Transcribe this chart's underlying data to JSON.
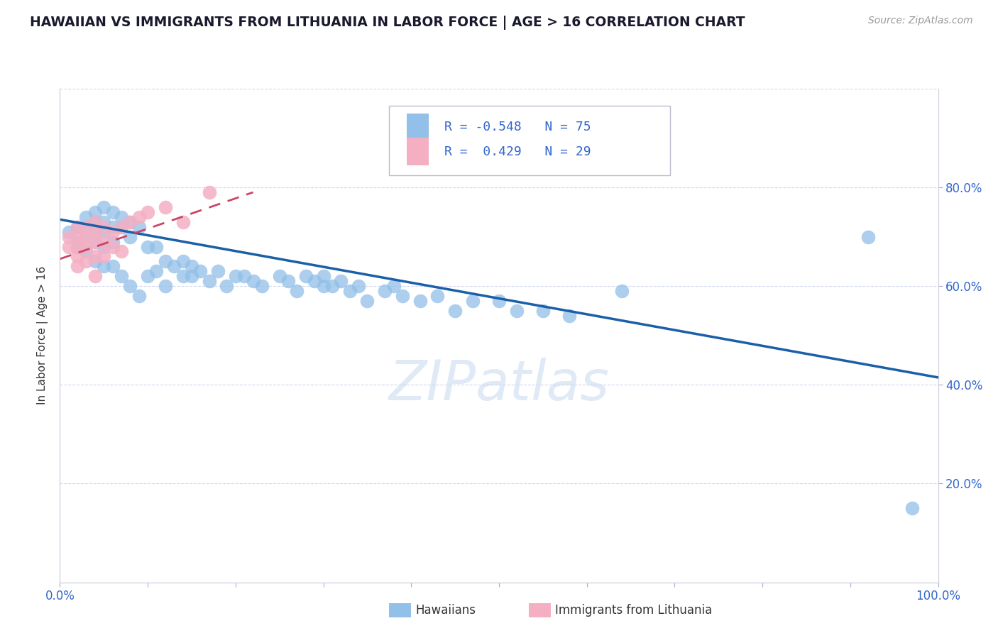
{
  "title": "HAWAIIAN VS IMMIGRANTS FROM LITHUANIA IN LABOR FORCE | AGE > 16 CORRELATION CHART",
  "source": "Source: ZipAtlas.com",
  "ylabel": "In Labor Force | Age > 16",
  "xlim": [
    0.0,
    1.0
  ],
  "ylim": [
    0.0,
    1.0
  ],
  "background_color": "#ffffff",
  "grid_color": "#d0d8ee",
  "watermark_text": "ZIPatlas",
  "legend_line1": "R = -0.548   N = 75",
  "legend_line2": "R =  0.429   N = 29",
  "blue_color": "#92c0e8",
  "pink_color": "#f4afc3",
  "trendline_blue": "#1a5fa8",
  "trendline_pink": "#cc4466",
  "hawaiians_x": [
    0.01,
    0.02,
    0.02,
    0.02,
    0.03,
    0.03,
    0.03,
    0.03,
    0.04,
    0.04,
    0.04,
    0.04,
    0.04,
    0.05,
    0.05,
    0.05,
    0.05,
    0.05,
    0.06,
    0.06,
    0.06,
    0.06,
    0.07,
    0.07,
    0.07,
    0.08,
    0.08,
    0.08,
    0.09,
    0.09,
    0.1,
    0.1,
    0.11,
    0.11,
    0.12,
    0.12,
    0.13,
    0.14,
    0.14,
    0.15,
    0.15,
    0.16,
    0.17,
    0.18,
    0.19,
    0.2,
    0.21,
    0.22,
    0.23,
    0.25,
    0.26,
    0.27,
    0.28,
    0.29,
    0.3,
    0.3,
    0.31,
    0.32,
    0.33,
    0.34,
    0.35,
    0.37,
    0.38,
    0.39,
    0.41,
    0.43,
    0.45,
    0.47,
    0.5,
    0.52,
    0.55,
    0.58,
    0.64,
    0.92,
    0.97
  ],
  "hawaiians_y": [
    0.71,
    0.72,
    0.69,
    0.68,
    0.74,
    0.72,
    0.7,
    0.67,
    0.75,
    0.73,
    0.71,
    0.69,
    0.65,
    0.76,
    0.73,
    0.71,
    0.68,
    0.64,
    0.75,
    0.72,
    0.69,
    0.64,
    0.74,
    0.72,
    0.62,
    0.73,
    0.7,
    0.6,
    0.72,
    0.58,
    0.68,
    0.62,
    0.68,
    0.63,
    0.65,
    0.6,
    0.64,
    0.65,
    0.62,
    0.64,
    0.62,
    0.63,
    0.61,
    0.63,
    0.6,
    0.62,
    0.62,
    0.61,
    0.6,
    0.62,
    0.61,
    0.59,
    0.62,
    0.61,
    0.6,
    0.62,
    0.6,
    0.61,
    0.59,
    0.6,
    0.57,
    0.59,
    0.6,
    0.58,
    0.57,
    0.58,
    0.55,
    0.57,
    0.57,
    0.55,
    0.55,
    0.54,
    0.59,
    0.7,
    0.15
  ],
  "lithuania_x": [
    0.01,
    0.01,
    0.02,
    0.02,
    0.02,
    0.02,
    0.02,
    0.03,
    0.03,
    0.03,
    0.03,
    0.04,
    0.04,
    0.04,
    0.04,
    0.04,
    0.05,
    0.05,
    0.05,
    0.06,
    0.06,
    0.07,
    0.07,
    0.08,
    0.09,
    0.1,
    0.12,
    0.14,
    0.17
  ],
  "lithuania_y": [
    0.7,
    0.68,
    0.72,
    0.7,
    0.68,
    0.66,
    0.64,
    0.72,
    0.7,
    0.68,
    0.65,
    0.73,
    0.71,
    0.69,
    0.66,
    0.62,
    0.72,
    0.69,
    0.66,
    0.71,
    0.68,
    0.72,
    0.67,
    0.73,
    0.74,
    0.75,
    0.76,
    0.73,
    0.79
  ],
  "blue_trendline_x": [
    0.0,
    1.0
  ],
  "blue_trendline_y": [
    0.735,
    0.415
  ],
  "pink_trendline_x": [
    0.0,
    0.22
  ],
  "pink_trendline_y": [
    0.655,
    0.79
  ]
}
